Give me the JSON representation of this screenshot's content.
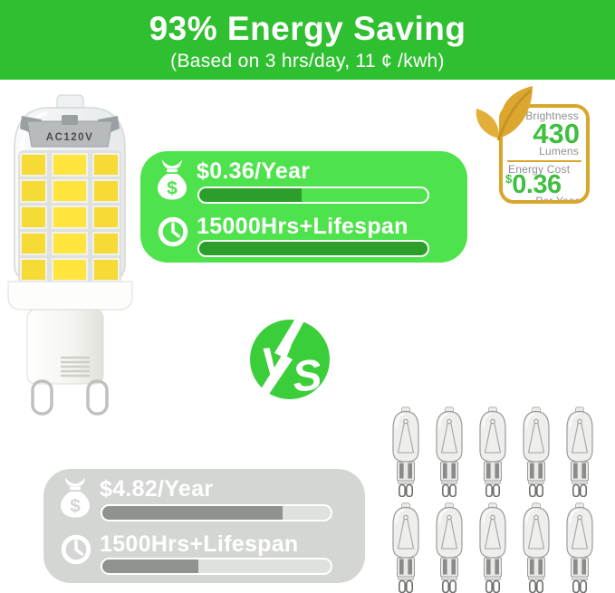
{
  "colors": {
    "banner_green": "#2fc031",
    "panel_green": "#4ee24c",
    "bar_dark_green": "#2b9e2b",
    "vs_green": "#3bce3b",
    "badge_gold": "#d9a62b",
    "value_green": "#3fbe3f",
    "panel_gray": "#d3d6d3",
    "bar_dark_gray": "#8e938e",
    "bar_track_gray": "#dfe1dd",
    "label_gray": "#8f8f8f"
  },
  "banner": {
    "title": "93% Energy Saving",
    "subtitle": "(Based on 3 hrs/day, 11 ¢ /kwh)"
  },
  "badge": {
    "brightness_label": "Brightness",
    "brightness_value": "430",
    "brightness_unit": "Lumens",
    "cost_label": "Energy Cost",
    "cost_currency": "$",
    "cost_value": "0.36",
    "cost_unit": "Per Year"
  },
  "led_bulb": {
    "band_label": "AC120V"
  },
  "led_panel": {
    "cost_text": "$0.36/Year",
    "cost_bar_pct": 45,
    "lifespan_text": "15000Hrs+Lifespan",
    "lifespan_bar_pct": 100
  },
  "halogen_panel": {
    "cost_text": "$4.82/Year",
    "cost_bar_pct": 79,
    "lifespan_text": "1500Hrs+Lifespan",
    "lifespan_bar_pct": 42
  },
  "vs": {
    "letter_v": "V",
    "letter_s": "S"
  },
  "icons": {
    "money_bag_symbol": "$"
  },
  "halogen_bulbs": {
    "count": 10,
    "rows": 2,
    "cols": 5
  }
}
